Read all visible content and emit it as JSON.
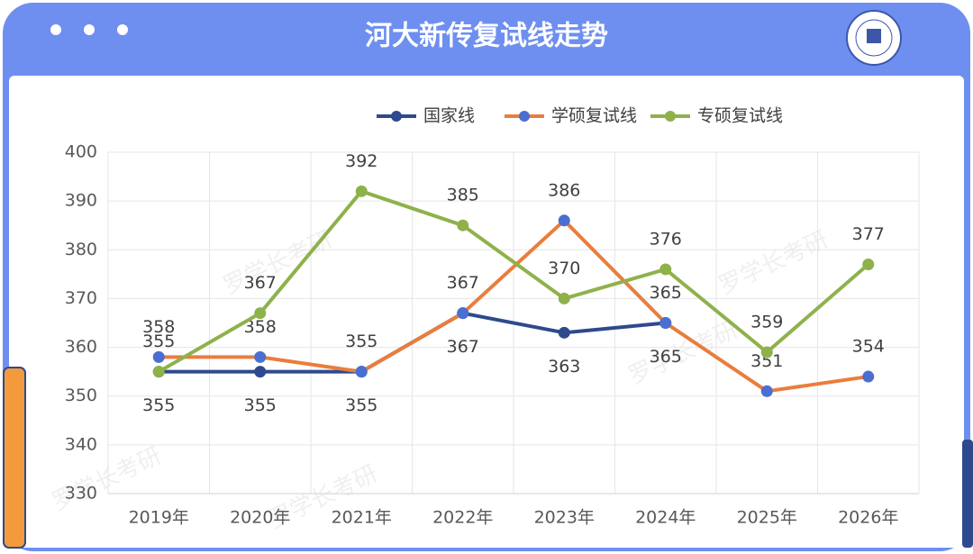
{
  "chart_data": {
    "type": "line",
    "title": "河大新传复试线走势",
    "annotations": [
      "罗学长考研"
    ],
    "categories": [
      "2019年",
      "2020年",
      "2021年",
      "2022年",
      "2023年",
      "2024年",
      "2025年",
      "2026年"
    ],
    "series": [
      {
        "name": "国家线",
        "color": "#2e4a8c",
        "marker_color": "#2e4a8c",
        "values": [
          355,
          355,
          355,
          367,
          363,
          365,
          null,
          null
        ]
      },
      {
        "name": "学硕复试线",
        "color": "#ea7d3c",
        "marker_color": "#4a6fd0",
        "values": [
          358,
          358,
          355,
          367,
          386,
          365,
          351,
          354
        ]
      },
      {
        "name": "专硕复试线",
        "color": "#8fb14b",
        "marker_color": "#8fb14b",
        "values": [
          355,
          367,
          392,
          385,
          370,
          376,
          359,
          377
        ]
      }
    ],
    "ylim": [
      330,
      400
    ],
    "yticks": [
      330,
      340,
      350,
      360,
      370,
      380,
      390,
      400
    ],
    "grid": true,
    "legend": "top"
  }
}
